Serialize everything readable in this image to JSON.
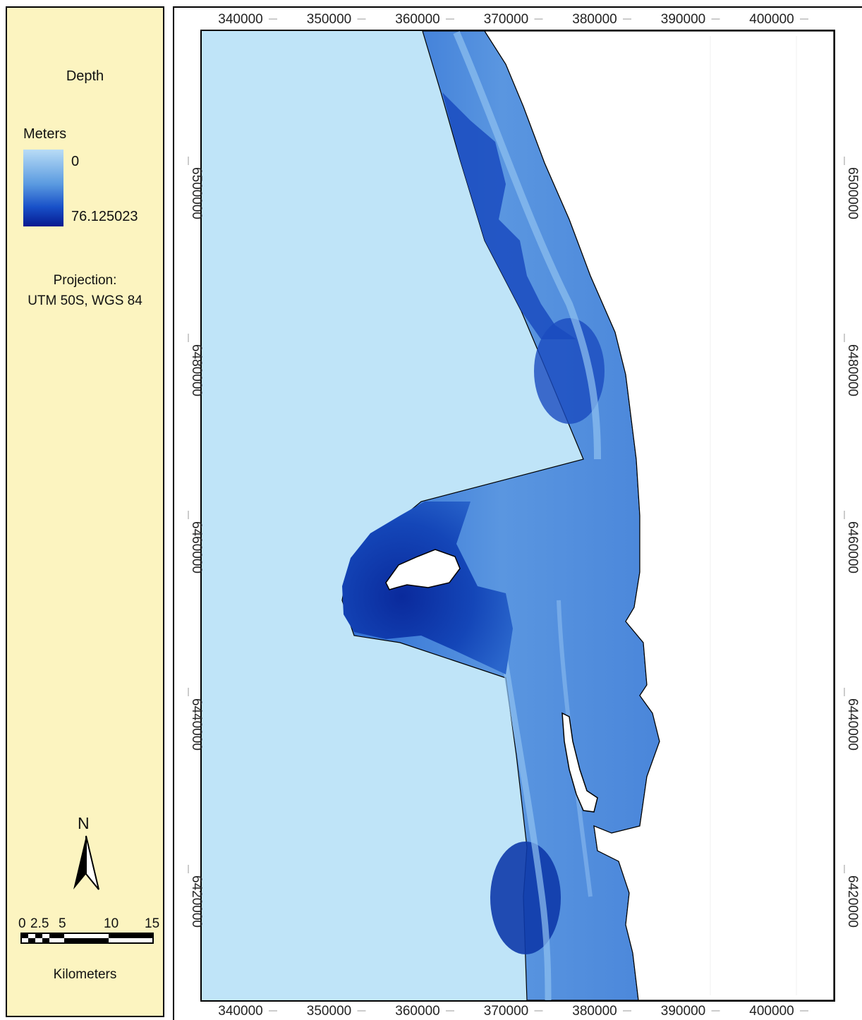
{
  "legend": {
    "title": "Depth",
    "unit": "Meters",
    "min_label": "0",
    "max_label": "76.125023",
    "ramp_colors": [
      "#b8dcf6",
      "#5a9ae0",
      "#1850c8",
      "#061a90"
    ],
    "projection_line1": "Projection:",
    "projection_line2": "UTM 50S, WGS 84",
    "north_label": "N",
    "scale_labels": [
      "0",
      "2.5",
      "5",
      "10",
      "15"
    ],
    "scale_unit": "Kilometers"
  },
  "map": {
    "x_ticks": [
      "340000",
      "350000",
      "360000",
      "370000",
      "380000",
      "390000",
      "400000"
    ],
    "y_ticks": [
      "6500000",
      "6480000",
      "6460000",
      "6440000",
      "6420000"
    ],
    "colors": {
      "background_water": "#bfe4f8",
      "land": "#ffffff",
      "shallow": "#6aa8e8",
      "mid": "#2f6fd4",
      "deep": "#0a2a9c"
    }
  }
}
